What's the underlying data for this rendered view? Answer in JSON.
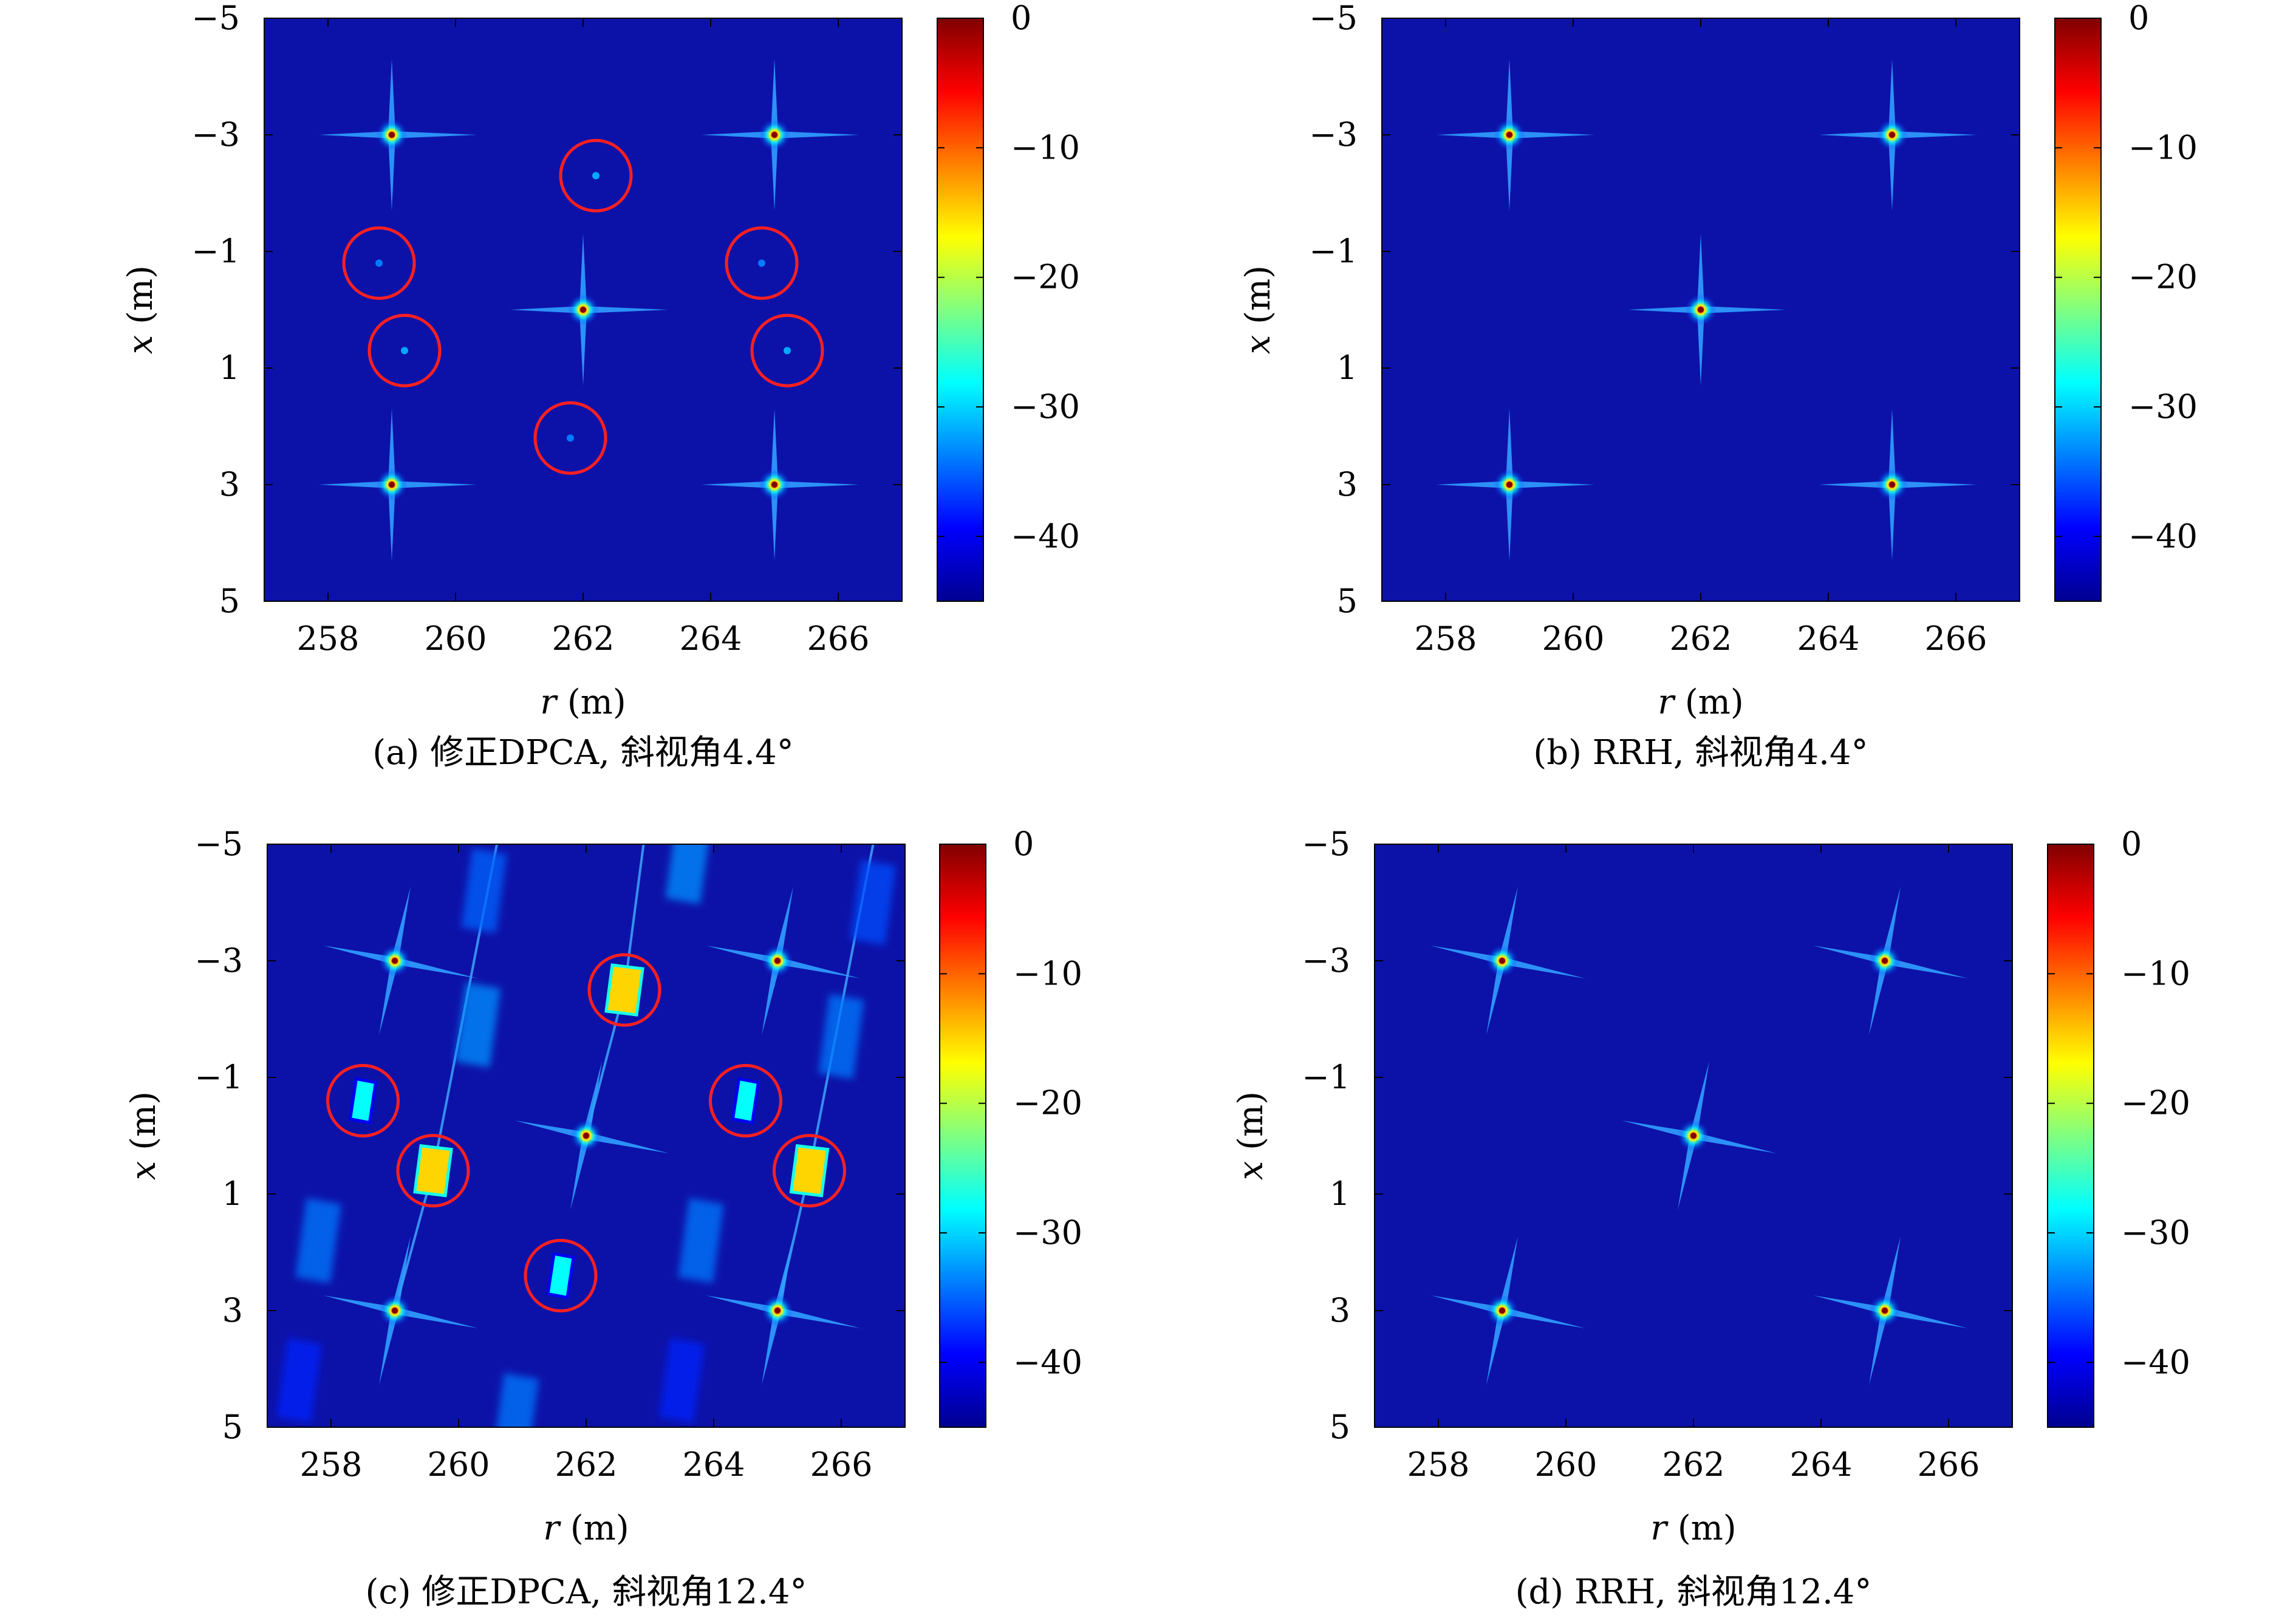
{
  "figure": {
    "colorbar_ticks": [
      "0",
      "−10",
      "−20",
      "−30",
      "−40"
    ],
    "colormap": [
      "#00008f",
      "#0000ff",
      "#0080ff",
      "#00ffff",
      "#80ff80",
      "#ffff00",
      "#ff8000",
      "#ff0000",
      "#800000"
    ],
    "background_color": "#0c12a8",
    "circle_color": "#ff2020"
  },
  "chart_data": [
    {
      "type": "heatmap",
      "caption": "(a) 修正DPCA, 斜视角4.4°",
      "xlabel_var": "r",
      "xlabel_unit": " (m)",
      "ylabel_var": "x",
      "ylabel_unit": " (m)",
      "xlim": [
        257,
        267
      ],
      "ylim": [
        -5,
        5
      ],
      "xticks": [
        "258",
        "260",
        "262",
        "264",
        "266"
      ],
      "yticks": [
        "−5",
        "−3",
        "−1",
        "1",
        "3",
        "5"
      ],
      "colorbar": {
        "min": -45,
        "max": 0
      },
      "points": [
        {
          "r": 259,
          "x": -3,
          "peak_db": 0
        },
        {
          "r": 265,
          "x": -3,
          "peak_db": 0
        },
        {
          "r": 262,
          "x": 0,
          "peak_db": 0
        },
        {
          "r": 259,
          "x": 3,
          "peak_db": 0
        },
        {
          "r": 265,
          "x": 3,
          "peak_db": 0
        }
      ],
      "ghosts": [
        {
          "r": 262.2,
          "x": -2.3,
          "level_db": -40
        },
        {
          "r": 258.8,
          "x": -0.8,
          "level_db": -42
        },
        {
          "r": 264.8,
          "x": -0.8,
          "level_db": -42
        },
        {
          "r": 259.2,
          "x": 0.7,
          "level_db": -40
        },
        {
          "r": 265.2,
          "x": 0.7,
          "level_db": -40
        },
        {
          "r": 261.8,
          "x": 2.2,
          "level_db": -42
        }
      ],
      "circled": [
        "ghost-1",
        "ghost-2",
        "ghost-3",
        "ghost-4",
        "ghost-5",
        "ghost-6"
      ]
    },
    {
      "type": "heatmap",
      "caption": "(b) RRH, 斜视角4.4°",
      "xlabel_var": "r",
      "xlabel_unit": " (m)",
      "ylabel_var": "x",
      "ylabel_unit": " (m)",
      "xlim": [
        257,
        267
      ],
      "ylim": [
        -5,
        5
      ],
      "xticks": [
        "258",
        "260",
        "262",
        "264",
        "266"
      ],
      "yticks": [
        "−5",
        "−3",
        "−1",
        "1",
        "3",
        "5"
      ],
      "colorbar": {
        "min": -45,
        "max": 0
      },
      "points": [
        {
          "r": 259,
          "x": -3,
          "peak_db": 0
        },
        {
          "r": 265,
          "x": -3,
          "peak_db": 0
        },
        {
          "r": 262,
          "x": 0,
          "peak_db": 0
        },
        {
          "r": 259,
          "x": 3,
          "peak_db": 0
        },
        {
          "r": 265,
          "x": 3,
          "peak_db": 0
        }
      ],
      "ghosts": []
    },
    {
      "type": "heatmap",
      "caption": "(c) 修正DPCA, 斜视角12.4°",
      "xlabel_var": "r",
      "xlabel_unit": " (m)",
      "ylabel_var": "x",
      "ylabel_unit": " (m)",
      "xlim": [
        257,
        267
      ],
      "ylim": [
        -5,
        5
      ],
      "xticks": [
        "258",
        "260",
        "262",
        "264",
        "266"
      ],
      "yticks": [
        "−5",
        "−3",
        "−1",
        "1",
        "3",
        "5"
      ],
      "colorbar": {
        "min": -45,
        "max": 0
      },
      "points": [
        {
          "r": 259,
          "x": -3,
          "peak_db": 0
        },
        {
          "r": 265,
          "x": -3,
          "peak_db": 0
        },
        {
          "r": 262,
          "x": 0,
          "peak_db": 0
        },
        {
          "r": 259,
          "x": 3,
          "peak_db": 0
        },
        {
          "r": 265,
          "x": 3,
          "peak_db": 0
        }
      ],
      "ghosts": [
        {
          "r": 262.6,
          "x": -2.5,
          "level_db": -15
        },
        {
          "r": 258.5,
          "x": -0.6,
          "level_db": -28
        },
        {
          "r": 264.5,
          "x": -0.6,
          "level_db": -28
        },
        {
          "r": 259.6,
          "x": 0.6,
          "level_db": -15
        },
        {
          "r": 265.5,
          "x": 0.6,
          "level_db": -15
        },
        {
          "r": 261.6,
          "x": 2.4,
          "level_db": -28
        }
      ],
      "circled": [
        "ghost-1",
        "ghost-2",
        "ghost-3",
        "ghost-4",
        "ghost-5",
        "ghost-6"
      ],
      "faint_patches": [
        {
          "r": 260.4,
          "x": -4.2,
          "level_db": -35
        },
        {
          "r": 263.6,
          "x": -4.7,
          "level_db": -33
        },
        {
          "r": 266.5,
          "x": -4.0,
          "level_db": -36
        },
        {
          "r": 260.3,
          "x": -1.9,
          "level_db": -33
        },
        {
          "r": 266.0,
          "x": -1.7,
          "level_db": -34
        },
        {
          "r": 257.8,
          "x": 1.8,
          "level_db": -34
        },
        {
          "r": 263.8,
          "x": 1.8,
          "level_db": -34
        },
        {
          "r": 257.5,
          "x": 4.2,
          "level_db": -38
        },
        {
          "r": 263.5,
          "x": 4.2,
          "level_db": -38
        },
        {
          "r": 260.9,
          "x": 4.8,
          "level_db": -34
        }
      ],
      "streaks": [
        {
          "from_r": 259.6,
          "from_x": 0.6,
          "to_r": 260.6,
          "to_x": -5
        },
        {
          "from_r": 259.6,
          "from_x": 0.6,
          "to_r": 259.0,
          "to_x": 3
        },
        {
          "from_r": 262.6,
          "from_x": -2.5,
          "to_r": 262.0,
          "to_x": 0
        },
        {
          "from_r": 265.5,
          "from_x": 0.6,
          "to_r": 266.5,
          "to_x": -5
        },
        {
          "from_r": 265.5,
          "from_x": 0.6,
          "to_r": 265.0,
          "to_x": 3
        },
        {
          "from_r": 262.6,
          "from_x": -2.5,
          "to_r": 262.9,
          "to_x": -5
        }
      ]
    },
    {
      "type": "heatmap",
      "caption": "(d) RRH, 斜视角12.4°",
      "xlabel_var": "r",
      "xlabel_unit": " (m)",
      "ylabel_var": "x",
      "ylabel_unit": " (m)",
      "xlim": [
        257,
        267
      ],
      "ylim": [
        -5,
        5
      ],
      "xticks": [
        "258",
        "260",
        "262",
        "264",
        "266"
      ],
      "yticks": [
        "−5",
        "−3",
        "−1",
        "1",
        "3",
        "5"
      ],
      "colorbar": {
        "min": -45,
        "max": 0
      },
      "points": [
        {
          "r": 259,
          "x": -3,
          "peak_db": 0
        },
        {
          "r": 265,
          "x": -3,
          "peak_db": 0
        },
        {
          "r": 262,
          "x": 0,
          "peak_db": 0
        },
        {
          "r": 259,
          "x": 3,
          "peak_db": 0
        },
        {
          "r": 265,
          "x": 3,
          "peak_db": 0
        }
      ],
      "ghosts": []
    }
  ]
}
